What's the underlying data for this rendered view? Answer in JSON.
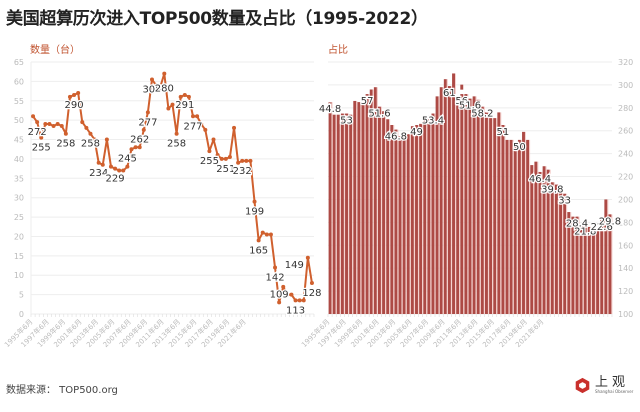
{
  "title": "美国超算历次进入TOP500数量及占比（1995-2022）",
  "source": "数据来源：  TOP500.org",
  "logo": {
    "cn": "上观",
    "en": "Shanghai Observer"
  },
  "colors": {
    "line": "#d0602e",
    "bar": "#ad4a45",
    "bar_gap": "#f3c8c4",
    "grid": "#eeeeee",
    "axis_text": "#bbbbbb",
    "label": "#333333",
    "accent_text": "#c0522e"
  },
  "chart_data": [
    {
      "type": "line",
      "title": "数量（台）",
      "ylabel": "数量（台）",
      "ylim": [
        0,
        65
      ],
      "yticks": [
        0,
        5,
        10,
        15,
        20,
        25,
        30,
        35,
        40,
        45,
        50,
        55,
        60,
        65
      ],
      "xticks": [
        "1995年6月",
        "1997年6月",
        "1999年6月",
        "2001年6月",
        "2003年6月",
        "2005年6月",
        "2007年6月",
        "2009年6月",
        "2011年6月",
        "2013年6月",
        "2015年6月",
        "2017年6月",
        "2019年6月",
        "2021年6月"
      ],
      "values": [
        51,
        49.5,
        45.5,
        49,
        49,
        48.5,
        49,
        48.5,
        46.5,
        56,
        56.5,
        57,
        49.5,
        48,
        46.5,
        45,
        39,
        38.5,
        45,
        38,
        37.5,
        37,
        37,
        38,
        42.5,
        43,
        43,
        47.5,
        52,
        60.5,
        59,
        58.5,
        62,
        53,
        54,
        46.5,
        56,
        56.5,
        56,
        51,
        51,
        49,
        47.5,
        42,
        45,
        41,
        40,
        40,
        40.5,
        48,
        39,
        39.5,
        39.5,
        39.5,
        29,
        19,
        21,
        20.5,
        20.5,
        12,
        3,
        7,
        5,
        5,
        3.5,
        3.5,
        3.5,
        14.5,
        8
      ],
      "annotations": [
        {
          "i": 1,
          "text": "272",
          "pos": "below"
        },
        {
          "i": 2,
          "text": "255",
          "pos": "below"
        },
        {
          "i": 8,
          "text": "258",
          "pos": "below"
        },
        {
          "i": 10,
          "text": "290",
          "pos": "below"
        },
        {
          "i": 14,
          "text": "258",
          "pos": "below"
        },
        {
          "i": 16,
          "text": "234",
          "pos": "below"
        },
        {
          "i": 20,
          "text": "229",
          "pos": "below"
        },
        {
          "i": 23,
          "text": "245",
          "pos": "above"
        },
        {
          "i": 26,
          "text": "262",
          "pos": "above"
        },
        {
          "i": 28,
          "text": "277",
          "pos": "below"
        },
        {
          "i": 29,
          "text": "305",
          "pos": "below"
        },
        {
          "i": 32,
          "text": "280",
          "pos": "below2"
        },
        {
          "i": 35,
          "text": "258",
          "pos": "below"
        },
        {
          "i": 37,
          "text": "291",
          "pos": "below"
        },
        {
          "i": 39,
          "text": "277",
          "pos": "below"
        },
        {
          "i": 43,
          "text": "255",
          "pos": "below"
        },
        {
          "i": 47,
          "text": "251",
          "pos": "below"
        },
        {
          "i": 51,
          "text": "232",
          "pos": "below"
        },
        {
          "i": 54,
          "text": "199",
          "pos": "below"
        },
        {
          "i": 55,
          "text": "165",
          "pos": "below"
        },
        {
          "i": 59,
          "text": "142",
          "pos": "below"
        },
        {
          "i": 60,
          "text": "109",
          "pos": "above"
        },
        {
          "i": 64,
          "text": "113",
          "pos": "below"
        },
        {
          "i": 67,
          "text": "149",
          "pos": "left"
        },
        {
          "i": 68,
          "text": "128",
          "pos": "below"
        }
      ]
    },
    {
      "type": "bar",
      "title": "占比",
      "ylabel": "占比",
      "ylim": [
        100,
        320
      ],
      "yticks": [
        100,
        120,
        140,
        160,
        180,
        200,
        220,
        240,
        260,
        280,
        300,
        320
      ],
      "xticks": [
        "1995年6月",
        "1997年6月",
        "1999年6月",
        "2001年6月",
        "2003年6月",
        "2005年6月",
        "2007年6月",
        "2009年6月",
        "2011年6月",
        "2013年6月",
        "2015年6月",
        "2017年6月",
        "2019年6月",
        "2021年6月"
      ],
      "values": [
        285,
        274,
        274,
        275,
        275,
        274,
        286,
        285,
        285,
        292,
        296,
        298,
        281,
        277,
        270,
        265,
        261,
        255,
        255,
        257,
        264,
        265,
        266,
        269,
        273,
        275,
        290,
        298,
        305,
        299,
        310,
        282,
        292,
        292,
        288,
        290,
        287,
        281,
        276,
        271,
        271,
        276,
        265,
        252,
        252,
        250,
        252,
        259,
        252,
        230,
        233,
        224,
        229,
        226,
        215,
        213,
        212,
        205,
        189,
        185,
        185,
        178,
        178,
        176,
        175,
        174,
        182,
        200,
        187
      ],
      "caps": [
        283,
        null,
        null,
        null,
        null,
        null,
        284,
        null,
        null,
        null,
        null,
        null,
        null,
        null,
        null,
        null,
        null,
        null,
        null,
        null,
        null,
        null,
        null,
        null,
        null,
        null,
        null,
        null,
        300,
        null,
        null,
        null,
        295,
        null,
        null,
        null,
        null,
        null,
        null,
        null,
        null,
        null,
        null,
        null,
        null,
        null,
        null,
        null,
        null,
        null,
        null,
        null,
        null,
        null,
        null,
        null,
        null,
        null,
        null,
        null,
        null,
        null,
        null,
        null,
        null,
        null,
        null,
        200,
        null
      ],
      "annotations": [
        {
          "i": 0,
          "text": "44.8"
        },
        {
          "i": 4,
          "text": "53"
        },
        {
          "i": 9,
          "text": "57"
        },
        {
          "i": 12,
          "text": "51.6"
        },
        {
          "i": 16,
          "text": "46.8"
        },
        {
          "i": 21,
          "text": "49"
        },
        {
          "i": 25,
          "text": "53.4"
        },
        {
          "i": 29,
          "text": "61"
        },
        {
          "i": 32,
          "text": "56"
        },
        {
          "i": 34,
          "text": "51.6"
        },
        {
          "i": 37,
          "text": "58.2"
        },
        {
          "i": 42,
          "text": "51"
        },
        {
          "i": 46,
          "text": "50"
        },
        {
          "i": 51,
          "text": "46.4"
        },
        {
          "i": 54,
          "text": "39.8"
        },
        {
          "i": 57,
          "text": "33"
        },
        {
          "i": 60,
          "text": "28.4"
        },
        {
          "i": 62,
          "text": "21.8"
        },
        {
          "i": 66,
          "text": "22.6"
        },
        {
          "i": 68,
          "text": "29.8"
        }
      ]
    }
  ]
}
